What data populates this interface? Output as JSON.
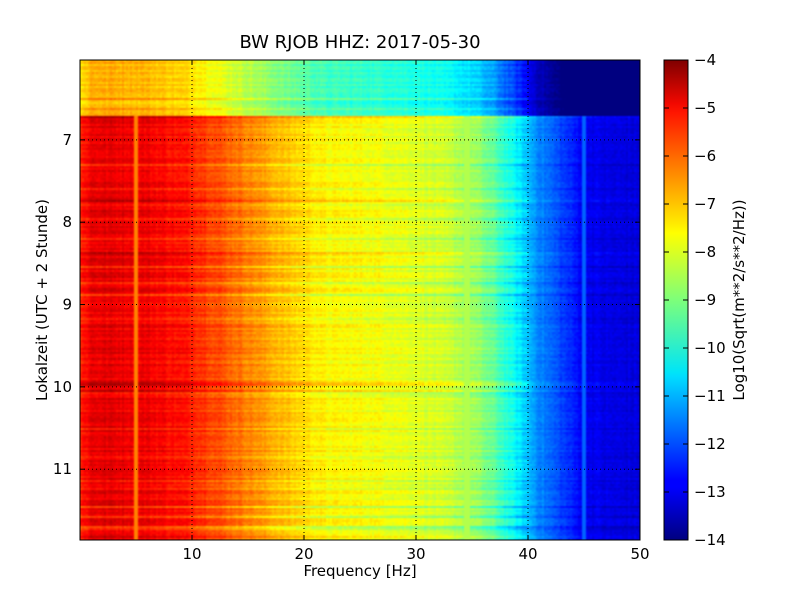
{
  "chart_data": {
    "type": "heatmap",
    "title": "BW RJOB HHZ: 2017-05-30",
    "xlabel": "Frequency [Hz]",
    "ylabel": "Lokalzeit (UTC + 2 Stunde)",
    "xlim": [
      0,
      50
    ],
    "ylim": [
      11.86,
      6.03
    ],
    "xticks": [
      {
        "value": 10,
        "label": "10"
      },
      {
        "value": 20,
        "label": "20"
      },
      {
        "value": 30,
        "label": "30"
      },
      {
        "value": 40,
        "label": "40"
      },
      {
        "value": 50,
        "label": "50"
      }
    ],
    "yticks": [
      {
        "value": 7,
        "label": "7"
      },
      {
        "value": 8,
        "label": "8"
      },
      {
        "value": 9,
        "label": "9"
      },
      {
        "value": 10,
        "label": "10"
      },
      {
        "value": 11,
        "label": "11"
      }
    ],
    "grid": true,
    "colormap": "jet",
    "colorbar": {
      "label": "Log10(Sqrt(m**2/s**2/Hz))",
      "range": [
        -14,
        -4
      ],
      "ticks": [
        {
          "value": -4,
          "label": "−4"
        },
        {
          "value": -5,
          "label": "−5"
        },
        {
          "value": -6,
          "label": "−6"
        },
        {
          "value": -7,
          "label": "−7"
        },
        {
          "value": -8,
          "label": "−8"
        },
        {
          "value": -9,
          "label": "−9"
        },
        {
          "value": -10,
          "label": "−10"
        },
        {
          "value": -11,
          "label": "−11"
        },
        {
          "value": -12,
          "label": "−12"
        },
        {
          "value": -13,
          "label": "−13"
        },
        {
          "value": -14,
          "label": "−14"
        }
      ]
    },
    "spectrum_profile": {
      "freq": [
        0,
        1,
        3,
        6,
        10,
        14,
        18,
        22,
        26,
        30,
        33,
        35,
        37,
        39,
        41,
        43,
        45,
        47,
        50
      ],
      "value": [
        -5.6,
        -5.0,
        -5.0,
        -5.1,
        -5.5,
        -6.3,
        -7.1,
        -7.7,
        -7.8,
        -8.0,
        -8.3,
        -8.6,
        -9.3,
        -10.3,
        -11.4,
        -12.1,
        -12.8,
        -13.0,
        -13.1
      ]
    },
    "segments": [
      {
        "time_start": 6.03,
        "time_end": 6.72,
        "offset": -2.0
      },
      {
        "time_start": 6.72,
        "time_end": 11.86,
        "offset": 0.0
      }
    ],
    "features": [
      {
        "type": "line",
        "freq": 5.0,
        "value": -6.5
      },
      {
        "type": "line",
        "freq": 34.5,
        "value": -8.5
      },
      {
        "type": "line",
        "freq": 45.0,
        "value": -11.8
      }
    ]
  }
}
